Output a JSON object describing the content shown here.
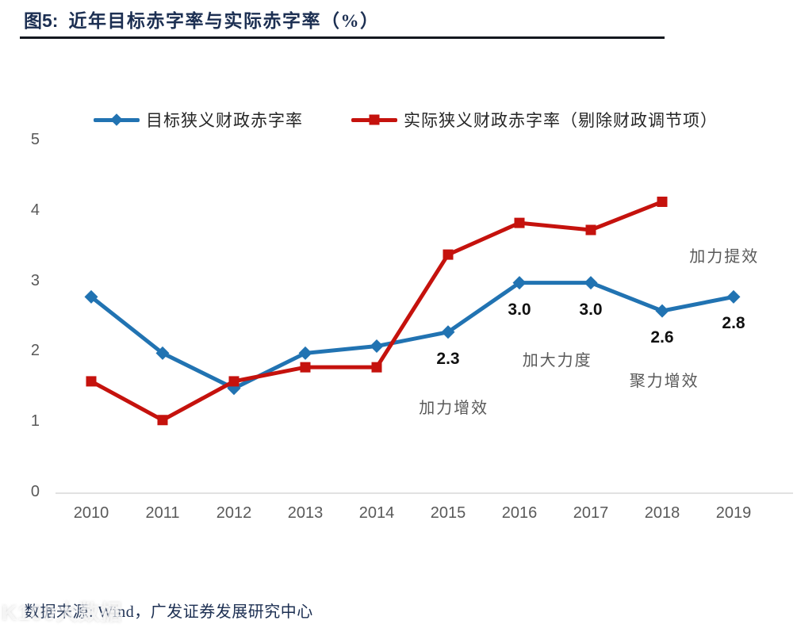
{
  "figure": {
    "title_prefix": "图5:",
    "title": "近年目标赤字率与实际赤字率（%）"
  },
  "source_line": "数据来源: Wind，广发证券发展研究中心",
  "watermark": "K100大数据",
  "colors": {
    "accent_navy": "#1C2F52",
    "line_blue": "#2173B2",
    "line_red": "#C5120D",
    "axis_line_gray": "#D9D9D9",
    "tick_text_gray": "#595959"
  },
  "chart_data": {
    "type": "line",
    "categories": [
      "2010",
      "2011",
      "2012",
      "2013",
      "2014",
      "2015",
      "2016",
      "2017",
      "2018",
      "2019"
    ],
    "series": [
      {
        "name": "目标狭义财政赤字率",
        "color": "#2173B2",
        "marker": "diamond",
        "values": [
          2.8,
          2.0,
          1.5,
          2.0,
          2.1,
          2.3,
          3.0,
          3.0,
          2.6,
          2.8
        ],
        "point_labels": [
          "",
          "",
          "",
          "",
          "",
          "2.3",
          "3.0",
          "3.0",
          "2.6",
          "2.8"
        ]
      },
      {
        "name": "实际狭义财政赤字率（剔除财政调节项）",
        "color": "#C5120D",
        "marker": "square",
        "values": [
          1.6,
          1.05,
          1.6,
          1.8,
          1.8,
          3.4,
          3.85,
          3.75,
          4.15,
          null
        ],
        "point_labels": [
          "",
          "",
          "",
          "",
          "",
          "",
          "",
          "",
          "",
          ""
        ]
      }
    ],
    "ylim": [
      0,
      5
    ],
    "yticks": [
      0,
      1,
      2,
      3,
      4,
      5
    ],
    "grid": false,
    "legend_position": "top",
    "annotations": [
      {
        "text": "加力增效",
        "year": 2015.08,
        "value": 1.26
      },
      {
        "text": "加大力度",
        "year": 2016.53,
        "value": 1.94
      },
      {
        "text": "聚力增效",
        "year": 2018.03,
        "value": 1.64
      },
      {
        "text": "加力提效",
        "year": 2018.87,
        "value": 3.41
      }
    ]
  }
}
